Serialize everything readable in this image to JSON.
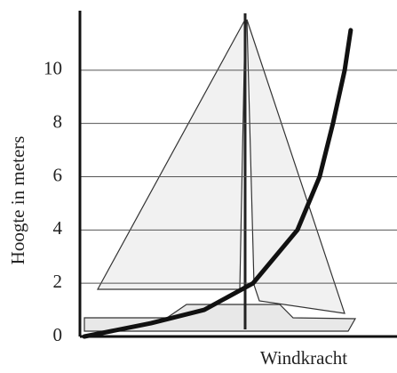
{
  "chart_data": {
    "type": "line",
    "y_label": "Hoogte in meters",
    "x_label": "Windkracht",
    "x": [
      1.4,
      22.4,
      39.2,
      54.6,
      68.6,
      75.6,
      79.8,
      83.5,
      85.4
    ],
    "values": [
      0,
      0.5,
      1,
      2,
      4,
      6,
      8,
      10,
      11.5
    ],
    "color": "#111111",
    "xlim": [
      0,
      100
    ],
    "ylim": [
      0,
      12.3
    ],
    "yticks": [
      0,
      2,
      4,
      6,
      8,
      10
    ],
    "grid": true
  }
}
